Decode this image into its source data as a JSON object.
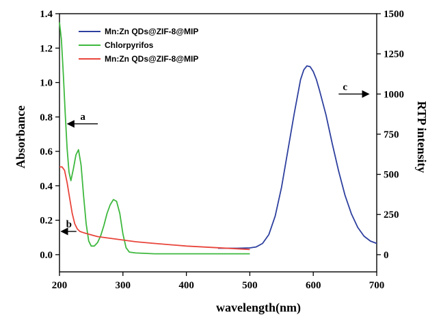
{
  "chart_data": {
    "type": "line",
    "xlabel": "wavelength(nm)",
    "ylabel_left": "Absorbance",
    "ylabel_right": "RTP intensity",
    "xlim": [
      200,
      700
    ],
    "ylim_left": [
      -0.1,
      1.4
    ],
    "ylim_right": [
      -107,
      1500
    ],
    "x_ticks": [
      200,
      300,
      400,
      500,
      600,
      700
    ],
    "y_left_ticks": [
      0.0,
      0.2,
      0.4,
      0.6,
      0.8,
      1.0,
      1.2,
      1.4
    ],
    "y_right_ticks": [
      0,
      250,
      500,
      750,
      1000,
      1250,
      1500
    ],
    "legend_position": "top-left",
    "legend": [
      {
        "label": "Mn:Zn QDs@ZIF-8@MIP",
        "color": "#2d3f9e"
      },
      {
        "label": "Chlorpyrifos",
        "color": "#3db83d"
      },
      {
        "label": "Mn:Zn QDs@ZIF-8@MIP",
        "color": "#e8443a"
      }
    ],
    "series": [
      {
        "axis": "right",
        "color": "#2d3f9e",
        "x": [
          450,
          480,
          500,
          510,
          520,
          530,
          540,
          550,
          560,
          570,
          580,
          585,
          590,
          595,
          600,
          605,
          610,
          620,
          630,
          640,
          650,
          660,
          670,
          680,
          690,
          700
        ],
        "y": [
          40,
          40,
          42,
          48,
          70,
          125,
          240,
          420,
          650,
          880,
          1090,
          1150,
          1175,
          1170,
          1140,
          1090,
          1020,
          870,
          690,
          520,
          370,
          255,
          170,
          115,
          85,
          70
        ]
      },
      {
        "axis": "left",
        "color": "#3db83d",
        "x": [
          200,
          203,
          206,
          209,
          212,
          215,
          218,
          222,
          226,
          230,
          234,
          238,
          242,
          246,
          250,
          255,
          260,
          265,
          270,
          275,
          280,
          285,
          290,
          295,
          300,
          305,
          310,
          320,
          350,
          400,
          450,
          500
        ],
        "y": [
          1.35,
          1.25,
          1.05,
          0.82,
          0.62,
          0.48,
          0.43,
          0.5,
          0.58,
          0.61,
          0.52,
          0.34,
          0.18,
          0.08,
          0.05,
          0.05,
          0.07,
          0.11,
          0.17,
          0.24,
          0.29,
          0.32,
          0.31,
          0.24,
          0.12,
          0.04,
          0.015,
          0.01,
          0.005,
          0.005,
          0.005,
          0.005
        ]
      },
      {
        "axis": "left",
        "color": "#e8443a",
        "x": [
          200,
          204,
          208,
          212,
          216,
          220,
          224,
          228,
          232,
          236,
          240,
          250,
          260,
          280,
          300,
          320,
          350,
          400,
          450,
          500
        ],
        "y": [
          0.51,
          0.51,
          0.49,
          0.42,
          0.33,
          0.24,
          0.18,
          0.15,
          0.135,
          0.13,
          0.125,
          0.115,
          0.105,
          0.095,
          0.085,
          0.075,
          0.065,
          0.05,
          0.04,
          0.03
        ]
      }
    ],
    "annotations": [
      {
        "label": "a",
        "arrow": "left",
        "x": 213,
        "y_left": 0.76
      },
      {
        "label": "b",
        "arrow": "left",
        "x": 203,
        "y_left": 0.135
      },
      {
        "label": "c",
        "arrow": "right",
        "x": 640,
        "y_right": 1000
      }
    ]
  }
}
